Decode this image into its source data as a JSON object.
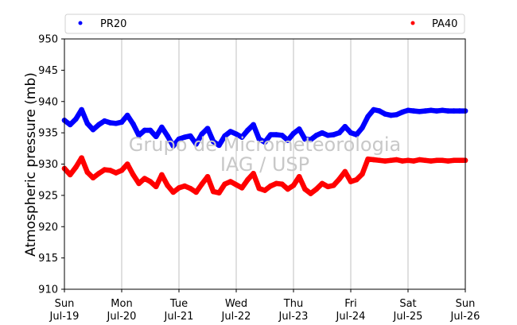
{
  "chart_data": {
    "type": "scatter",
    "ylabel": "Atmospheric pressure (mb)",
    "ylim": [
      910,
      950
    ],
    "yticks": [
      910,
      915,
      920,
      925,
      930,
      935,
      940,
      945,
      950
    ],
    "xlim": [
      "2015-07-19",
      "2015-07-26"
    ],
    "xticks": [
      {
        "day": "Sun",
        "date": "Jul-19"
      },
      {
        "day": "Mon",
        "date": "Jul-20"
      },
      {
        "day": "Tue",
        "date": "Jul-21"
      },
      {
        "day": "Wed",
        "date": "Jul-22"
      },
      {
        "day": "Thu",
        "date": "Jul-23"
      },
      {
        "day": "Fri",
        "date": "Jul-24"
      },
      {
        "day": "Sat",
        "date": "Jul-25"
      },
      {
        "day": "Sun",
        "date": "Jul-26"
      }
    ],
    "grid": "vertical",
    "legend_position": "top",
    "watermark": [
      "Grupo de Micrometeorologia",
      "IAG / USP"
    ],
    "series": [
      {
        "name": "PR20",
        "color": "#0000ff",
        "x": [
          0,
          0.1,
          0.2,
          0.3,
          0.4,
          0.5,
          0.6,
          0.7,
          0.8,
          0.9,
          1,
          1.1,
          1.2,
          1.3,
          1.4,
          1.5,
          1.6,
          1.7,
          1.8,
          1.9,
          2,
          2.1,
          2.2,
          2.3,
          2.4,
          2.5,
          2.6,
          2.7,
          2.8,
          2.9,
          3,
          3.1,
          3.2,
          3.3,
          3.4,
          3.5,
          3.6,
          3.7,
          3.8,
          3.9,
          4,
          4.1,
          4.2,
          4.3,
          4.4,
          4.5,
          4.6,
          4.7,
          4.8,
          4.9,
          5,
          5.1,
          5.2,
          5.3,
          5.4,
          5.5,
          5.6,
          5.7,
          5.8,
          5.9,
          6,
          6.1,
          6.2,
          6.3,
          6.4,
          6.5,
          6.6,
          6.7,
          6.8,
          6.9,
          7
        ],
        "y": [
          937.0,
          936.3,
          937.2,
          938.7,
          936.5,
          935.5,
          936.3,
          936.9,
          936.6,
          936.5,
          936.7,
          937.8,
          936.4,
          934.6,
          935.4,
          935.4,
          934.4,
          935.9,
          934.5,
          932.9,
          934.0,
          934.3,
          934.5,
          933.2,
          934.8,
          935.7,
          933.6,
          933.0,
          934.5,
          935.2,
          934.8,
          934.3,
          935.4,
          936.3,
          934.0,
          933.5,
          934.7,
          934.7,
          934.6,
          933.8,
          934.9,
          935.6,
          934.0,
          933.9,
          934.6,
          935.0,
          934.6,
          934.7,
          935.0,
          936.0,
          935.0,
          934.7,
          935.8,
          937.6,
          938.7,
          938.5,
          938.0,
          937.8,
          937.9,
          938.3,
          938.6,
          938.5,
          938.4,
          938.5,
          938.6,
          938.5,
          938.6,
          938.5,
          938.5,
          938.5,
          938.5
        ]
      },
      {
        "name": "PA40",
        "color": "#ff0000",
        "x": [
          0,
          0.1,
          0.2,
          0.3,
          0.4,
          0.5,
          0.6,
          0.7,
          0.8,
          0.9,
          1,
          1.1,
          1.2,
          1.3,
          1.4,
          1.5,
          1.6,
          1.7,
          1.8,
          1.9,
          2,
          2.1,
          2.2,
          2.3,
          2.4,
          2.5,
          2.6,
          2.7,
          2.8,
          2.9,
          3,
          3.1,
          3.2,
          3.3,
          3.4,
          3.5,
          3.6,
          3.7,
          3.8,
          3.9,
          4,
          4.1,
          4.2,
          4.3,
          4.4,
          4.5,
          4.6,
          4.7,
          4.8,
          4.9,
          5,
          5.1,
          5.2,
          5.3,
          5.4,
          5.5,
          5.6,
          5.7,
          5.8,
          5.9,
          6,
          6.1,
          6.2,
          6.3,
          6.4,
          6.5,
          6.6,
          6.7,
          6.8,
          6.9,
          7
        ],
        "y": [
          929.3,
          928.3,
          929.5,
          931.0,
          928.7,
          927.8,
          928.5,
          929.1,
          929.0,
          928.6,
          929.0,
          930.0,
          928.3,
          926.9,
          927.7,
          927.2,
          926.4,
          928.3,
          926.6,
          925.5,
          926.2,
          926.5,
          926.1,
          925.5,
          926.8,
          928.0,
          925.6,
          925.4,
          926.8,
          927.2,
          926.7,
          926.2,
          927.5,
          928.5,
          926.1,
          925.8,
          926.5,
          926.9,
          926.8,
          926.0,
          926.6,
          928.0,
          926.0,
          925.3,
          926.0,
          926.9,
          926.4,
          926.6,
          927.6,
          928.8,
          927.2,
          927.5,
          928.4,
          930.8,
          930.7,
          930.6,
          930.5,
          930.6,
          930.7,
          930.5,
          930.6,
          930.5,
          930.7,
          930.6,
          930.5,
          930.6,
          930.6,
          930.5,
          930.6,
          930.6,
          930.6
        ]
      }
    ]
  }
}
